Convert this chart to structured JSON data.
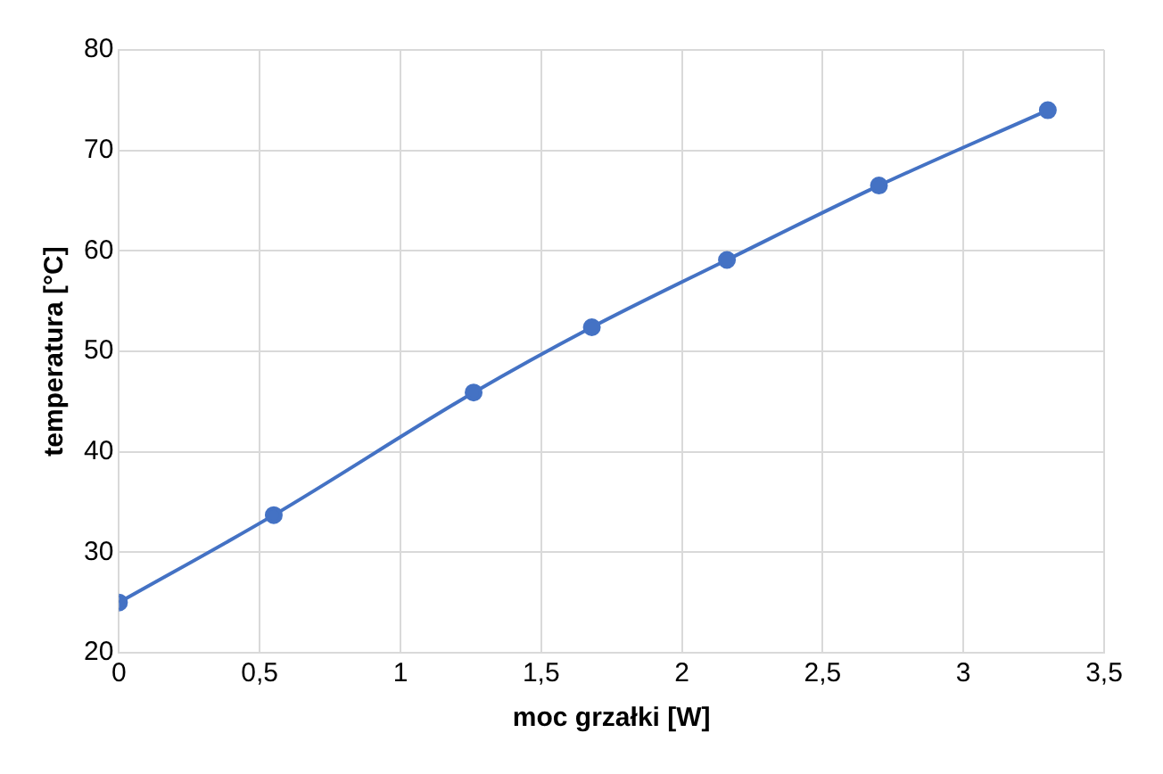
{
  "chart_data": {
    "type": "line",
    "xlabel": "moc grzałki [W]",
    "ylabel": "temperatura [°C]",
    "x": [
      0,
      0.55,
      1.26,
      1.68,
      2.16,
      2.7,
      3.3
    ],
    "series": [
      {
        "color": "#4472c4",
        "values": [
          25,
          33.7,
          45.9,
          52.4,
          59.1,
          66.5,
          74
        ]
      }
    ],
    "xlim": [
      0,
      3.5
    ],
    "xticks": [
      0,
      {
        "value": 0.5,
        "label": "0,5"
      },
      1,
      {
        "value": 1.5,
        "label": "1,5"
      },
      2,
      {
        "value": 2.5,
        "label": "2,5"
      },
      3,
      {
        "value": 3.5,
        "label": "3,5"
      }
    ],
    "ylim": [
      20,
      80
    ],
    "yticks": [
      20,
      30,
      40,
      50,
      60,
      70,
      80
    ],
    "grid": true,
    "marker": "circle",
    "line_style": "solid",
    "legend": false
  }
}
